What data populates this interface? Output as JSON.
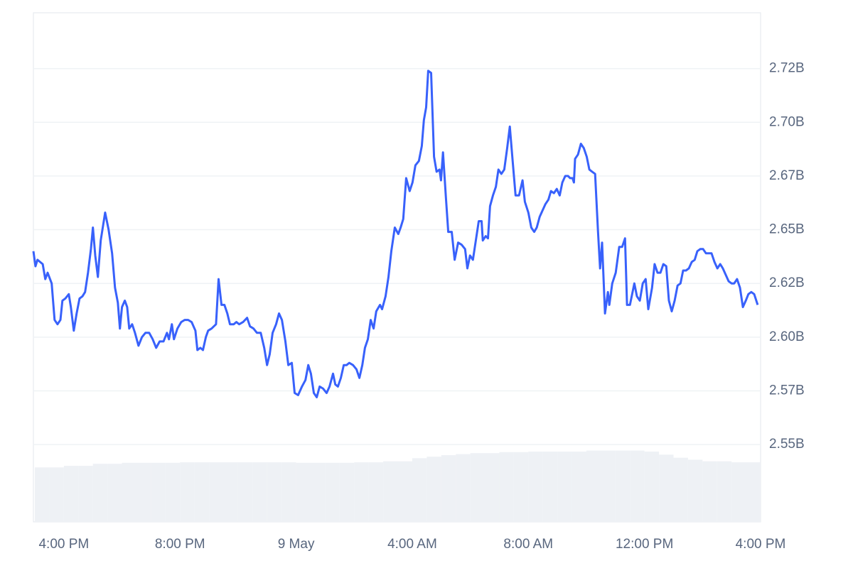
{
  "chart_data": {
    "type": "line",
    "xlim": [
      -1.05,
      24
    ],
    "xticks": [
      {
        "value": 0,
        "label": "4:00 PM"
      },
      {
        "value": 4,
        "label": "8:00 PM"
      },
      {
        "value": 8,
        "label": "9 May"
      },
      {
        "value": 12,
        "label": "4:00 AM"
      },
      {
        "value": 16,
        "label": "8:00 AM"
      },
      {
        "value": 20,
        "label": "12:00 PM"
      },
      {
        "value": 24,
        "label": "4:00 PM"
      }
    ],
    "ylim": [
      2.514,
      2.751
    ],
    "yticks": [
      {
        "value": 2.55,
        "label": "2.55B"
      },
      {
        "value": 2.575,
        "label": "2.57B"
      },
      {
        "value": 2.6,
        "label": "2.60B"
      },
      {
        "value": 2.625,
        "label": "2.62B"
      },
      {
        "value": 2.65,
        "label": "2.65B"
      },
      {
        "value": 2.675,
        "label": "2.67B"
      },
      {
        "value": 2.7,
        "label": "2.70B"
      },
      {
        "value": 2.725,
        "label": "2.72B"
      }
    ],
    "y2lim": [
      0,
      100
    ],
    "grid": true,
    "series": [
      {
        "color": "#3861fb",
        "x": [
          -1.05,
          -0.98,
          -0.91,
          -0.73,
          -0.64,
          -0.56,
          -0.42,
          -0.32,
          -0.22,
          -0.12,
          -0.05,
          0.05,
          0.17,
          0.24,
          0.34,
          0.44,
          0.54,
          0.64,
          0.73,
          0.83,
          0.93,
          1.0,
          1.08,
          1.17,
          1.27,
          1.42,
          1.54,
          1.66,
          1.76,
          1.86,
          1.93,
          2.0,
          2.1,
          2.18,
          2.25,
          2.35,
          2.45,
          2.57,
          2.69,
          2.81,
          2.94,
          3.06,
          3.18,
          3.3,
          3.43,
          3.55,
          3.62,
          3.72,
          3.79,
          3.91,
          4.04,
          4.16,
          4.28,
          4.4,
          4.53,
          4.6,
          4.7,
          4.79,
          4.89,
          4.97,
          5.09,
          5.24,
          5.33,
          5.43,
          5.53,
          5.63,
          5.72,
          5.85,
          5.94,
          6.04,
          6.17,
          6.31,
          6.41,
          6.53,
          6.65,
          6.78,
          6.9,
          7.0,
          7.09,
          7.19,
          7.31,
          7.41,
          7.51,
          7.63,
          7.73,
          7.85,
          7.95,
          8.07,
          8.2,
          8.32,
          8.42,
          8.51,
          8.61,
          8.71,
          8.81,
          8.93,
          9.05,
          9.15,
          9.27,
          9.35,
          9.44,
          9.54,
          9.64,
          9.74,
          9.83,
          9.96,
          10.08,
          10.18,
          10.28,
          10.37,
          10.47,
          10.57,
          10.67,
          10.76,
          10.89,
          10.96,
          11.08,
          11.18,
          11.28,
          11.4,
          11.52,
          11.6,
          11.69,
          11.79,
          11.91,
          12.01,
          12.11,
          12.23,
          12.33,
          12.4,
          12.48,
          12.55,
          12.65,
          12.75,
          12.84,
          12.94,
          12.99,
          13.06,
          13.16,
          13.24,
          13.36,
          13.46,
          13.58,
          13.7,
          13.82,
          13.9,
          13.99,
          14.09,
          14.19,
          14.29,
          14.39,
          14.43,
          14.53,
          14.61,
          14.68,
          14.78,
          14.88,
          14.97,
          15.07,
          15.17,
          15.27,
          15.36,
          15.46,
          15.56,
          15.68,
          15.8,
          15.88,
          16.0,
          16.1,
          16.2,
          16.29,
          16.39,
          16.49,
          16.59,
          16.69,
          16.78,
          16.88,
          16.98,
          17.08,
          17.17,
          17.27,
          17.37,
          17.44,
          17.52,
          17.57,
          17.61,
          17.71,
          17.81,
          17.91,
          18.01,
          18.1,
          18.2,
          18.3,
          18.4,
          18.47,
          18.54,
          18.64,
          18.74,
          18.79,
          18.89,
          19.01,
          19.13,
          19.23,
          19.33,
          19.4,
          19.5,
          19.65,
          19.74,
          19.84,
          19.94,
          20.04,
          20.13,
          20.26,
          20.35,
          20.45,
          20.55,
          20.65,
          20.75,
          20.84,
          20.94,
          21.04,
          21.14,
          21.24,
          21.33,
          21.43,
          21.53,
          21.63,
          21.73,
          21.82,
          21.92,
          22.02,
          22.12,
          22.21,
          22.31,
          22.41,
          22.51,
          22.61,
          22.7,
          22.8,
          22.9,
          23.0,
          23.09,
          23.19,
          23.29,
          23.39,
          23.49,
          23.58,
          23.68,
          23.78,
          23.9
        ],
        "values": [
          2.64,
          2.633,
          2.636,
          2.634,
          2.627,
          2.63,
          2.625,
          2.608,
          2.606,
          2.608,
          2.617,
          2.618,
          2.62,
          2.614,
          2.603,
          2.611,
          2.618,
          2.619,
          2.621,
          2.63,
          2.641,
          2.651,
          2.638,
          2.628,
          2.645,
          2.658,
          2.65,
          2.639,
          2.623,
          2.616,
          2.604,
          2.614,
          2.617,
          2.614,
          2.604,
          2.606,
          2.602,
          2.596,
          2.6,
          2.602,
          2.602,
          2.599,
          2.595,
          2.598,
          2.598,
          2.602,
          2.599,
          2.606,
          2.599,
          2.604,
          2.607,
          2.608,
          2.608,
          2.607,
          2.603,
          2.594,
          2.595,
          2.594,
          2.6,
          2.603,
          2.604,
          2.606,
          2.627,
          2.615,
          2.615,
          2.611,
          2.606,
          2.606,
          2.607,
          2.606,
          2.607,
          2.609,
          2.605,
          2.604,
          2.602,
          2.602,
          2.595,
          2.587,
          2.592,
          2.602,
          2.606,
          2.611,
          2.608,
          2.598,
          2.587,
          2.588,
          2.574,
          2.573,
          2.577,
          2.58,
          2.587,
          2.583,
          2.574,
          2.572,
          2.577,
          2.576,
          2.574,
          2.577,
          2.583,
          2.578,
          2.577,
          2.581,
          2.587,
          2.587,
          2.588,
          2.587,
          2.585,
          2.581,
          2.587,
          2.595,
          2.599,
          2.608,
          2.604,
          2.612,
          2.615,
          2.613,
          2.619,
          2.628,
          2.64,
          2.651,
          2.648,
          2.651,
          2.655,
          2.674,
          2.668,
          2.672,
          2.68,
          2.682,
          2.689,
          2.701,
          2.707,
          2.724,
          2.723,
          2.684,
          2.677,
          2.678,
          2.673,
          2.686,
          2.665,
          2.649,
          2.649,
          2.636,
          2.644,
          2.643,
          2.641,
          2.632,
          2.638,
          2.636,
          2.645,
          2.654,
          2.654,
          2.645,
          2.647,
          2.646,
          2.661,
          2.666,
          2.67,
          2.678,
          2.676,
          2.678,
          2.688,
          2.698,
          2.682,
          2.666,
          2.666,
          2.673,
          2.663,
          2.658,
          2.651,
          2.649,
          2.651,
          2.656,
          2.659,
          2.662,
          2.664,
          2.668,
          2.667,
          2.669,
          2.666,
          2.672,
          2.675,
          2.675,
          2.674,
          2.674,
          2.672,
          2.683,
          2.685,
          2.69,
          2.688,
          2.684,
          2.678,
          2.677,
          2.676,
          2.649,
          2.632,
          2.644,
          2.611,
          2.621,
          2.615,
          2.625,
          2.63,
          2.642,
          2.642,
          2.646,
          2.615,
          2.615,
          2.625,
          2.619,
          2.617,
          2.625,
          2.627,
          2.613,
          2.623,
          2.634,
          2.63,
          2.63,
          2.634,
          2.633,
          2.617,
          2.612,
          2.617,
          2.624,
          2.625,
          2.631,
          2.631,
          2.632,
          2.635,
          2.636,
          2.64,
          2.641,
          2.641,
          2.639,
          2.639,
          2.639,
          2.635,
          2.632,
          2.634,
          2.632,
          2.629,
          2.626,
          2.625,
          2.625,
          2.627,
          2.623,
          2.614,
          2.617,
          2.62,
          2.621,
          2.62,
          2.615
        ]
      },
      {
        "color": "#eef1f5",
        "axis": "y2",
        "x": [
          -1,
          -0.5,
          0,
          0.5,
          1,
          1.5,
          2,
          2.5,
          3,
          3.5,
          4,
          4.5,
          5,
          5.5,
          6,
          6.5,
          7,
          7.5,
          8,
          8.5,
          9,
          9.5,
          10,
          10.5,
          11,
          11.5,
          12,
          12.5,
          13,
          13.5,
          14,
          14.5,
          15,
          15.5,
          16,
          16.5,
          17,
          17.5,
          18,
          18.5,
          19,
          19.5,
          20,
          20.5,
          21,
          21.5,
          22,
          22.5,
          23,
          23.5
        ],
        "values": [
          10.7,
          10.7,
          11.0,
          11.0,
          11.4,
          11.4,
          11.6,
          11.6,
          11.6,
          11.6,
          11.7,
          11.7,
          11.7,
          11.7,
          11.7,
          11.7,
          11.7,
          11.7,
          11.6,
          11.6,
          11.6,
          11.6,
          11.7,
          11.7,
          11.9,
          11.9,
          12.5,
          12.8,
          13.1,
          13.3,
          13.5,
          13.5,
          13.7,
          13.7,
          13.8,
          13.8,
          13.8,
          13.8,
          14.0,
          14.0,
          14.0,
          14.0,
          13.8,
          13.2,
          12.6,
          12.2,
          11.9,
          11.9,
          11.7,
          11.7
        ]
      }
    ]
  }
}
